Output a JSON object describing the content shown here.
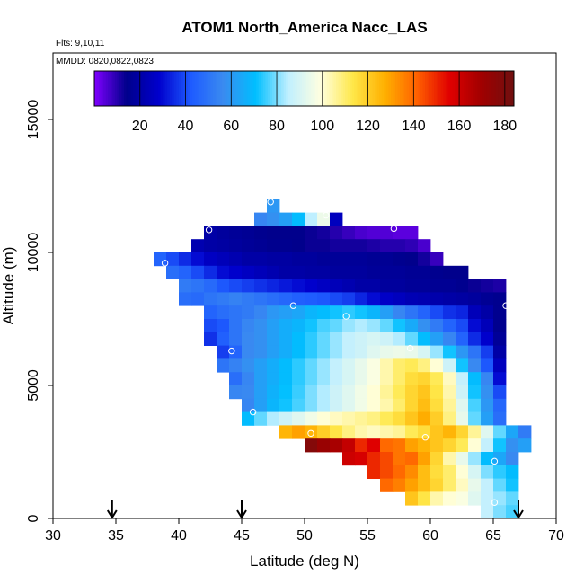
{
  "chart_data": {
    "type": "heatmap",
    "title": "ATOM1 North_America Nacc_LAS",
    "subtitle_lines": [
      "Flts: 9,10,11",
      "MMDD: 0820,0822,0823"
    ],
    "xlabel": "Latitude (deg N)",
    "ylabel": "Altitude (m)",
    "xlim": [
      30,
      70
    ],
    "ylim": [
      0,
      17500
    ],
    "x_ticks": [
      30,
      35,
      40,
      45,
      50,
      55,
      60,
      65,
      70
    ],
    "y_ticks": [
      0,
      5000,
      10000,
      15000
    ],
    "bin_width_deg": 1,
    "bin_height_m": 500,
    "colorbar": {
      "min": 0,
      "max": 184,
      "ticks": [
        20,
        40,
        60,
        80,
        100,
        120,
        140,
        160,
        180
      ],
      "colors": [
        "#7F00FF",
        "#00008B",
        "#0000CD",
        "#1E5BFF",
        "#3A8BF0",
        "#00BFFF",
        "#BFEFFF",
        "#FFFFE0",
        "#FFE84A",
        "#FFB000",
        "#FF6000",
        "#E00000",
        "#A00000",
        "#701010"
      ]
    },
    "markers": {
      "symbol": "arrow-down",
      "latitudes": [
        34.7,
        45,
        67
      ]
    },
    "altitude_profiles": [
      {
        "lat": 47.3,
        "alt": 11900
      },
      {
        "lat": 42.4,
        "alt": 10850
      },
      {
        "lat": 51.7,
        "alt": 11400
      },
      {
        "lat": 57.1,
        "alt": 10900
      },
      {
        "lat": 38.9,
        "alt": 9600
      },
      {
        "lat": 49.1,
        "alt": 8000
      },
      {
        "lat": 53.3,
        "alt": 7600
      },
      {
        "lat": 66.0,
        "alt": 8000
      },
      {
        "lat": 44.2,
        "alt": 6300
      },
      {
        "lat": 58.4,
        "alt": 6400
      },
      {
        "lat": 45.9,
        "alt": 4000
      },
      {
        "lat": 50.5,
        "alt": 3200
      },
      {
        "lat": 59.6,
        "alt": 3050
      },
      {
        "lat": 65.1,
        "alt": 2150
      },
      {
        "lat": 65.1,
        "alt": 600
      }
    ],
    "rows": [
      {
        "alt": 11750,
        "lat0": 47,
        "values": [
          60
        ]
      },
      {
        "alt": 11250,
        "lat0": 46,
        "values": [
          55,
          58,
          62,
          70,
          85,
          95,
          25
        ]
      },
      {
        "alt": 10750,
        "lat0": 42,
        "values": [
          20,
          18,
          17,
          16,
          15,
          14,
          14,
          14,
          13,
          12,
          10,
          8,
          6,
          5,
          5,
          4,
          4
        ]
      },
      {
        "alt": 10250,
        "lat0": 41,
        "values": [
          22,
          20,
          19,
          18,
          17,
          16,
          15,
          15,
          14,
          13,
          13,
          12,
          12,
          12,
          11,
          10,
          10,
          9,
          6
        ]
      },
      {
        "alt": 9750,
        "lat0": 38,
        "values": [
          45,
          40,
          35,
          30,
          26,
          24,
          22,
          20,
          20,
          19,
          19,
          18,
          18,
          17,
          17,
          17,
          17,
          16,
          16,
          15,
          14,
          12,
          8
        ]
      },
      {
        "alt": 9250,
        "lat0": 39,
        "values": [
          48,
          45,
          40,
          35,
          30,
          28,
          26,
          24,
          22,
          20,
          20,
          19,
          19,
          18,
          18,
          18,
          17,
          17,
          17,
          16,
          16,
          15,
          14,
          14
        ]
      },
      {
        "alt": 8750,
        "lat0": 40,
        "values": [
          52,
          50,
          47,
          42,
          40,
          38,
          36,
          34,
          32,
          30,
          28,
          26,
          24,
          22,
          20,
          20,
          18,
          18,
          17,
          17,
          16,
          16,
          15,
          13,
          12,
          11
        ]
      },
      {
        "alt": 8250,
        "lat0": 40,
        "values": [
          48,
          47,
          50,
          52,
          54,
          52,
          50,
          48,
          46,
          44,
          43,
          42,
          40,
          38,
          34,
          30,
          27,
          25,
          23,
          22,
          21,
          20,
          19,
          18,
          16,
          15
        ]
      },
      {
        "alt": 7750,
        "lat0": 42,
        "values": [
          45,
          48,
          50,
          52,
          55,
          60,
          62,
          64,
          68,
          70,
          72,
          74,
          72,
          68,
          62,
          55,
          50,
          45,
          40,
          36,
          34,
          24,
          20,
          15
        ]
      },
      {
        "alt": 7250,
        "lat0": 42,
        "values": [
          40,
          42,
          50,
          55,
          58,
          62,
          66,
          68,
          72,
          76,
          78,
          82,
          84,
          82,
          78,
          72,
          65,
          58,
          52,
          45,
          40,
          30,
          24,
          15
        ]
      },
      {
        "alt": 6750,
        "lat0": 42,
        "values": [
          36,
          44,
          50,
          56,
          58,
          62,
          66,
          70,
          74,
          78,
          82,
          86,
          88,
          90,
          88,
          84,
          78,
          70,
          62,
          55,
          45,
          35,
          28,
          17
        ]
      },
      {
        "alt": 6250,
        "lat0": 43,
        "values": [
          38,
          45,
          56,
          58,
          62,
          66,
          70,
          74,
          78,
          82,
          86,
          88,
          92,
          94,
          95,
          94,
          90,
          82,
          72,
          60,
          50,
          38,
          20
        ]
      },
      {
        "alt": 5750,
        "lat0": 43,
        "values": [
          50,
          54,
          58,
          62,
          66,
          70,
          74,
          78,
          82,
          86,
          90,
          94,
          98,
          104,
          110,
          112,
          108,
          100,
          88,
          72,
          56,
          42,
          25
        ]
      },
      {
        "alt": 5250,
        "lat0": 44,
        "values": [
          48,
          55,
          62,
          66,
          70,
          74,
          78,
          82,
          86,
          90,
          94,
          98,
          104,
          110,
          116,
          118,
          112,
          102,
          86,
          70,
          55,
          30
        ]
      },
      {
        "alt": 4750,
        "lat0": 44,
        "values": [
          55,
          56,
          62,
          67,
          71,
          75,
          80,
          84,
          88,
          92,
          96,
          100,
          106,
          112,
          118,
          122,
          114,
          104,
          88,
          72,
          58,
          40
        ]
      },
      {
        "alt": 4250,
        "lat0": 45,
        "values": [
          55,
          62,
          68,
          72,
          76,
          80,
          84,
          88,
          92,
          96,
          100,
          104,
          110,
          118,
          124,
          116,
          106,
          92,
          76,
          60,
          46
        ]
      },
      {
        "alt": 3750,
        "lat0": 45,
        "values": [
          70,
          78,
          84,
          88,
          92,
          96,
          100,
          102,
          104,
          106,
          108,
          112,
          116,
          122,
          128,
          120,
          108,
          94,
          78,
          62,
          48
        ]
      },
      {
        "alt": 3250,
        "lat0": 48,
        "values": [
          126,
          130,
          126,
          120,
          114,
          108,
          104,
          102,
          104,
          106,
          112,
          116,
          122,
          126,
          118,
          106,
          92,
          78,
          64,
          52
        ]
      },
      {
        "alt": 2750,
        "lat0": 50,
        "values": [
          178,
          172,
          168,
          162,
          150,
          156,
          140,
          138,
          130,
          126,
          122,
          118,
          112,
          100,
          86,
          72,
          58,
          62
        ]
      },
      {
        "alt": 2250,
        "lat0": 53,
        "values": [
          160,
          158,
          150,
          145,
          138,
          140,
          130,
          118,
          104,
          94,
          82,
          70,
          64,
          56
        ]
      },
      {
        "alt": 1750,
        "lat0": 55,
        "values": [
          150,
          145,
          140,
          134,
          124,
          116,
          110,
          100,
          90,
          80,
          74,
          70
        ]
      },
      {
        "alt": 1250,
        "lat0": 56,
        "values": [
          140,
          136,
          130,
          124,
          118,
          110,
          102,
          94,
          86,
          78,
          72
        ]
      },
      {
        "alt": 750,
        "lat0": 58,
        "values": [
          122,
          114,
          104,
          100,
          98,
          92,
          86,
          82,
          78
        ]
      },
      {
        "alt": 250,
        "lat0": 64,
        "values": [
          86,
          80,
          76
        ]
      }
    ]
  }
}
